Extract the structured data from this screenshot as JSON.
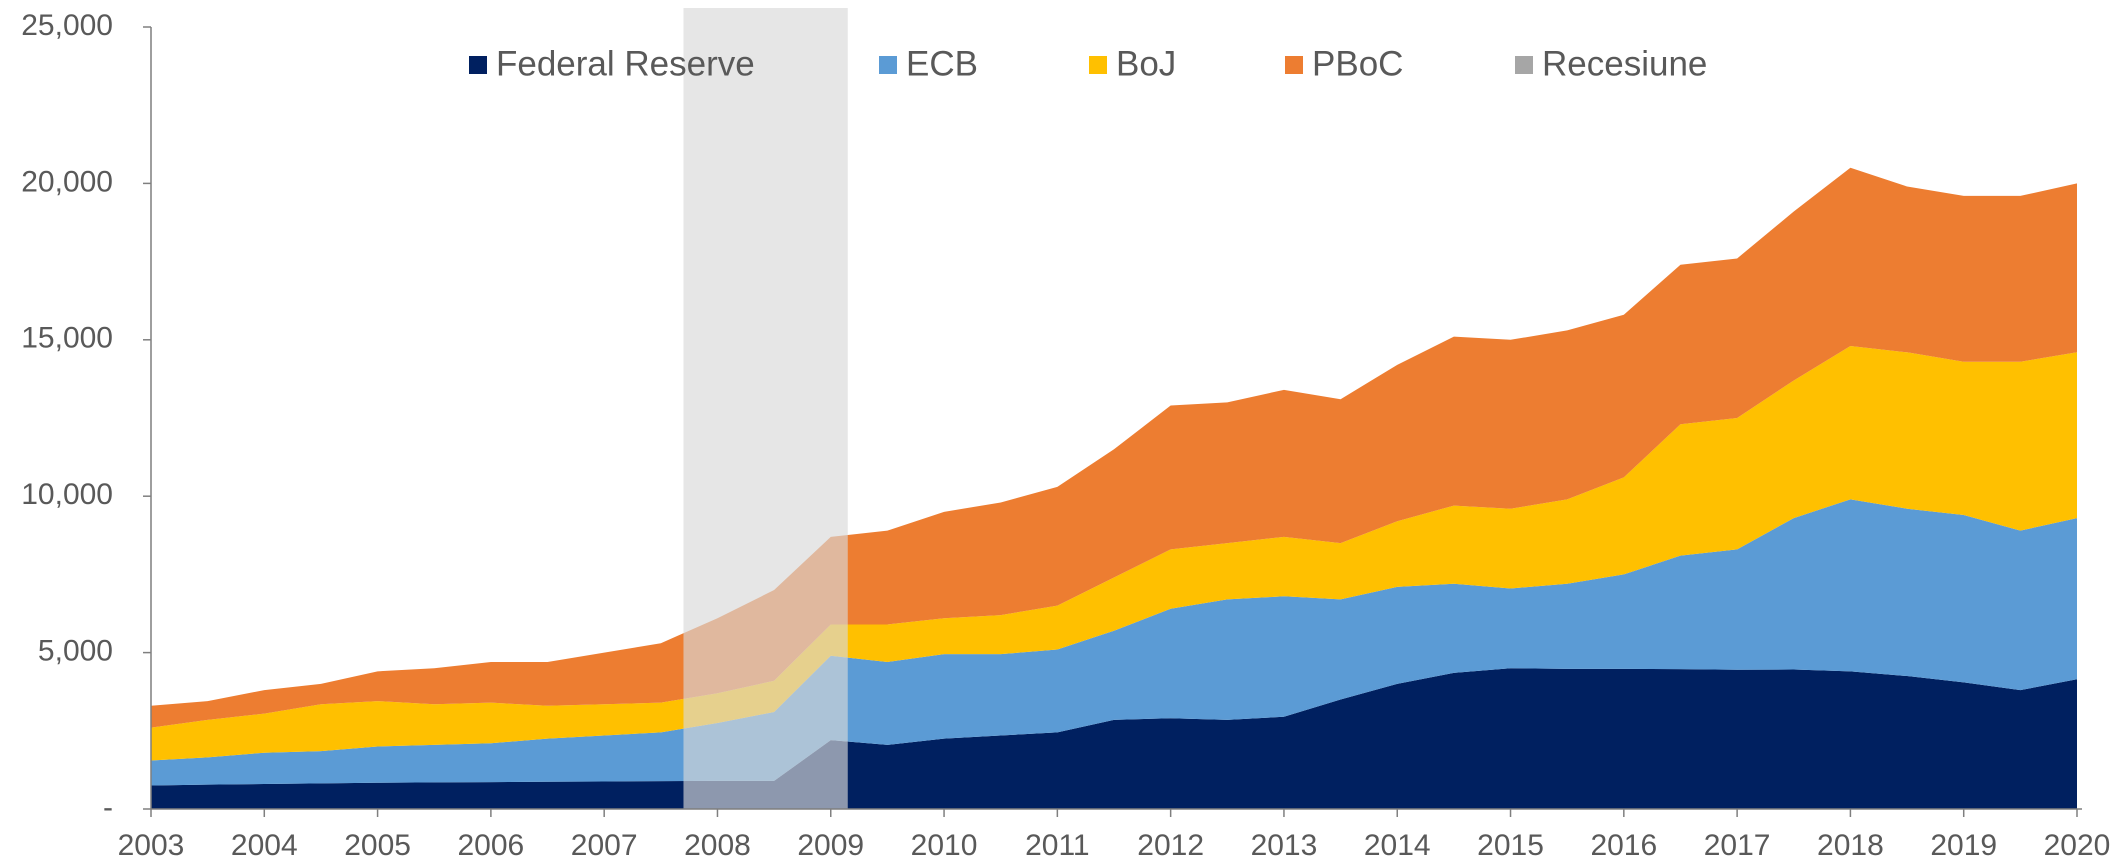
{
  "chart_data": {
    "type": "area",
    "x": [
      2003,
      2003.5,
      2004,
      2004.5,
      2005,
      2005.5,
      2006,
      2006.5,
      2007,
      2007.5,
      2008,
      2008.5,
      2009,
      2009.5,
      2010,
      2010.5,
      2011,
      2011.5,
      2012,
      2012.5,
      2013,
      2013.5,
      2014,
      2014.5,
      2015,
      2015.5,
      2016,
      2016.5,
      2017,
      2017.5,
      2018,
      2018.5,
      2019,
      2019.5,
      2020
    ],
    "series": [
      {
        "name": "Federal Reserve",
        "color": "#002060",
        "values": [
          750,
          780,
          800,
          820,
          840,
          850,
          860,
          870,
          880,
          890,
          900,
          900,
          2200,
          2050,
          2250,
          2350,
          2450,
          2850,
          2900,
          2850,
          2950,
          3500,
          4000,
          4350,
          4500,
          4480,
          4480,
          4470,
          4450,
          4460,
          4400,
          4250,
          4050,
          3800,
          4150
        ]
      },
      {
        "name": "ECB",
        "color": "#5b9bd5",
        "values": [
          800,
          870,
          1000,
          1030,
          1160,
          1200,
          1240,
          1380,
          1470,
          1560,
          1850,
          2200,
          2700,
          2650,
          2700,
          2600,
          2650,
          2850,
          3500,
          3850,
          3850,
          3200,
          3100,
          2850,
          2550,
          2720,
          3020,
          3630,
          3850,
          4840,
          5500,
          5350,
          5350,
          5100,
          5150
        ]
      },
      {
        "name": "BoJ",
        "color": "#ffc000",
        "values": [
          1050,
          1200,
          1250,
          1500,
          1450,
          1300,
          1300,
          1050,
          1000,
          950,
          950,
          1000,
          1000,
          1200,
          1150,
          1250,
          1400,
          1700,
          1900,
          1800,
          1900,
          1800,
          2100,
          2500,
          2550,
          2700,
          3100,
          4200,
          4200,
          4400,
          4900,
          5000,
          4900,
          5400,
          5300
        ]
      },
      {
        "name": "PBoC",
        "color": "#ed7d31",
        "values": [
          700,
          600,
          750,
          650,
          950,
          1150,
          1300,
          1400,
          1650,
          1900,
          2400,
          2900,
          2800,
          3000,
          3400,
          3600,
          3800,
          4100,
          4600,
          4500,
          4700,
          4600,
          5000,
          5400,
          5400,
          5400,
          5200,
          5100,
          5100,
          5400,
          5700,
          5300,
          5300,
          5300,
          5400
        ]
      }
    ],
    "recession": {
      "name": "Recesiune",
      "color": "#a6a6a6",
      "x": [
        2007.7,
        2009.15
      ]
    },
    "xlim": [
      2003,
      2020
    ],
    "xticks": [
      2003,
      2004,
      2005,
      2006,
      2007,
      2008,
      2009,
      2010,
      2011,
      2012,
      2013,
      2014,
      2015,
      2016,
      2017,
      2018,
      2019,
      2020
    ],
    "ylim": [
      0,
      25000
    ],
    "yticks": [
      {
        "value": 0,
        "label": "-"
      },
      {
        "value": 5000,
        "label": "5,000"
      },
      {
        "value": 10000,
        "label": "10,000"
      },
      {
        "value": 15000,
        "label": "15,000"
      },
      {
        "value": 20000,
        "label": "20,000"
      },
      {
        "value": 25000,
        "label": "25,000"
      }
    ],
    "legend": "top"
  }
}
